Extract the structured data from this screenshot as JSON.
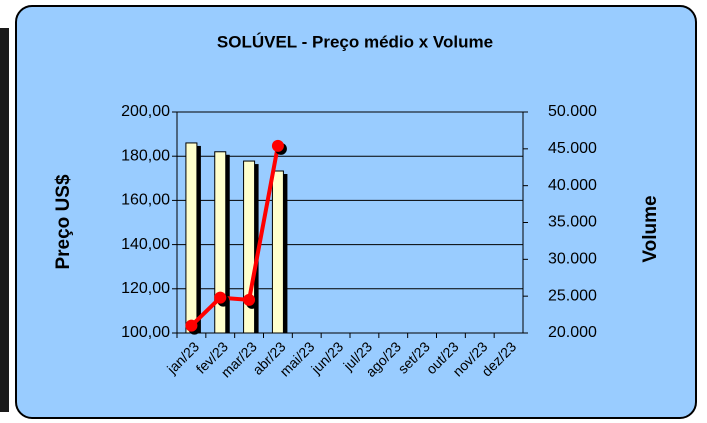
{
  "chart_data": {
    "type": "bar_line",
    "title": "SOLÚVEL - Preço médio x Volume",
    "ylabel": "Preço US$",
    "y2label": "Volume",
    "categories": [
      "jan/23",
      "fev/23",
      "mar/23",
      "abr/23",
      "mai/23",
      "jun/23",
      "jul/23",
      "ago/23",
      "set/23",
      "out/23",
      "nov/23",
      "dez/23"
    ],
    "series": [
      {
        "type": "bar",
        "color": "#ffffcc",
        "values": [
          186,
          182,
          177.8,
          173.3,
          null,
          null,
          null,
          null,
          null,
          null,
          null,
          null
        ]
      },
      {
        "type": "line",
        "axis": "y2",
        "color": "#ff0000",
        "values": [
          21000,
          24800,
          24500,
          45400,
          null,
          null,
          null,
          null,
          null,
          null,
          null,
          null
        ]
      }
    ],
    "ylim": [
      100,
      200
    ],
    "yticks": [
      {
        "value": 100,
        "label": "100,00"
      },
      {
        "value": 120,
        "label": "120,00"
      },
      {
        "value": 140,
        "label": "140,00"
      },
      {
        "value": 160,
        "label": "160,00"
      },
      {
        "value": 180,
        "label": "180,00"
      },
      {
        "value": 200,
        "label": "200,00"
      }
    ],
    "y2lim": [
      20000,
      50000
    ],
    "y2ticks": [
      {
        "value": 20000,
        "label": "20.000"
      },
      {
        "value": 25000,
        "label": "25.000"
      },
      {
        "value": 30000,
        "label": "30.000"
      },
      {
        "value": 35000,
        "label": "35.000"
      },
      {
        "value": 40000,
        "label": "40.000"
      },
      {
        "value": 45000,
        "label": "45.000"
      },
      {
        "value": 50000,
        "label": "50.000"
      }
    ],
    "grid": true
  }
}
